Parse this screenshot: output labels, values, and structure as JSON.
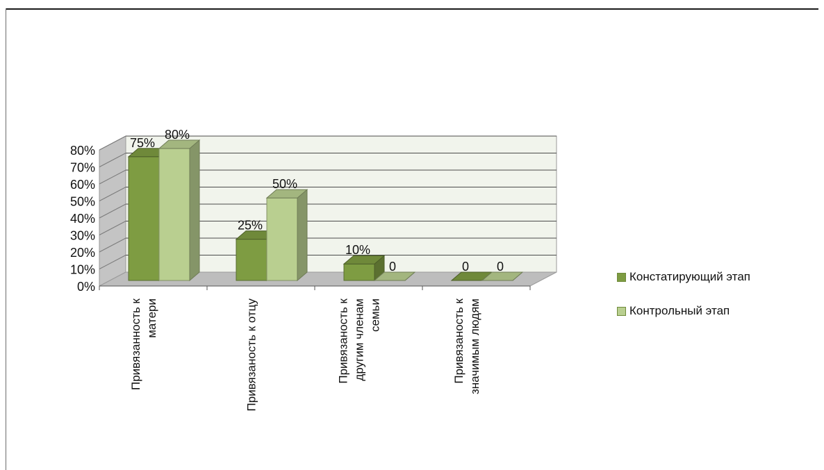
{
  "chart_data": {
    "type": "bar",
    "categories": [
      [
        "Привязанность к",
        "матери"
      ],
      [
        "Привязаность к отцу"
      ],
      [
        "Привязаность к",
        "другим членам",
        "семьи"
      ],
      [
        "Привязаность к",
        "значимым людям"
      ]
    ],
    "series": [
      {
        "name": "Констатирующий этап",
        "values": [
          75,
          25,
          10,
          0
        ],
        "labels": [
          "75%",
          "25%",
          "10%",
          "0"
        ],
        "color": "#7e9c42"
      },
      {
        "name": "Контрольный этап",
        "values": [
          80,
          50,
          0,
          0
        ],
        "labels": [
          "80%",
          "50%",
          "0",
          "0"
        ],
        "color": "#b9cf90"
      }
    ],
    "yticks": [
      "0%",
      "10%",
      "20%",
      "30%",
      "40%",
      "50%",
      "60%",
      "70%",
      "80%"
    ],
    "ylim": [
      0,
      80
    ],
    "grid": true,
    "legend_position": "right",
    "style": "3d-clustered-column"
  }
}
